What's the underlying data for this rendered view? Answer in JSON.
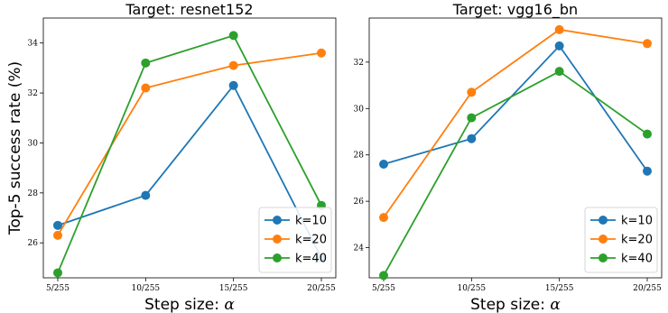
{
  "chart_data": [
    {
      "type": "line",
      "title": "Target:  resnet152",
      "xlabel": "Step size:",
      "xlabel_symbol": "α",
      "ylabel": "Top-5 success rate  (%)",
      "categories": [
        "5/255",
        "10/255",
        "15/255",
        "20/255"
      ],
      "ylim": [
        24.6,
        35.0
      ],
      "yticks": [
        26,
        28,
        30,
        32,
        34
      ],
      "legend_position": "lower-right",
      "grid": false,
      "series": [
        {
          "name": "k=10",
          "color": "#1f77b4",
          "values": [
            26.7,
            27.9,
            32.3,
            25.4
          ]
        },
        {
          "name": "k=20",
          "color": "#ff7f0e",
          "values": [
            26.3,
            32.2,
            33.1,
            33.6
          ]
        },
        {
          "name": "k=40",
          "color": "#2ca02c",
          "values": [
            24.8,
            33.2,
            34.3,
            27.5
          ]
        }
      ]
    },
    {
      "type": "line",
      "title": "Target:  vgg16_bn",
      "xlabel": "Step size:",
      "xlabel_symbol": "α",
      "ylabel": "",
      "categories": [
        "5/255",
        "10/255",
        "15/255",
        "20/255"
      ],
      "ylim": [
        22.7,
        33.9
      ],
      "yticks": [
        24,
        26,
        28,
        30,
        32
      ],
      "legend_position": "lower-right",
      "grid": false,
      "series": [
        {
          "name": "k=10",
          "color": "#1f77b4",
          "values": [
            27.6,
            28.7,
            32.7,
            27.3
          ]
        },
        {
          "name": "k=20",
          "color": "#ff7f0e",
          "values": [
            25.3,
            30.7,
            33.4,
            32.8
          ]
        },
        {
          "name": "k=40",
          "color": "#2ca02c",
          "values": [
            22.8,
            29.6,
            31.6,
            28.9
          ]
        }
      ]
    }
  ]
}
